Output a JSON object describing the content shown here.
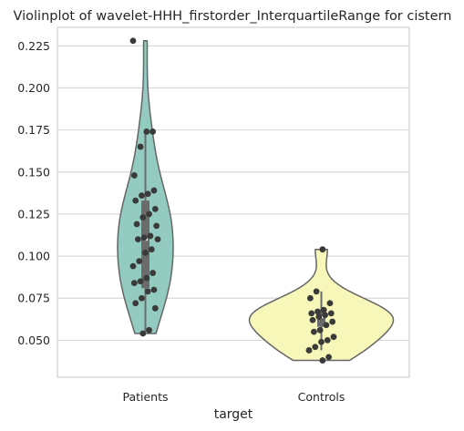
{
  "chart_data": {
    "type": "violin",
    "title": "Violinplot of wavelet-HHH_firstorder_InterquartileRange for cistern",
    "xlabel": "target",
    "ylabel": "",
    "categories": [
      "Patients",
      "Controls"
    ],
    "ylim": [
      0.028,
      0.236
    ],
    "yticks": [
      0.05,
      0.075,
      0.1,
      0.125,
      0.15,
      0.175,
      0.2,
      0.225
    ],
    "ytick_labels": [
      "0.050",
      "0.075",
      "0.100",
      "0.125",
      "0.150",
      "0.175",
      "0.200",
      "0.225"
    ],
    "grid": true,
    "colors": {
      "Patients": "#93cbc1",
      "Controls": "#f7f7b9"
    },
    "series": [
      {
        "name": "Patients",
        "box": {
          "q1": 0.081,
          "median": 0.11,
          "q3": 0.133,
          "whisker_low": 0.055,
          "whisker_high": 0.174
        },
        "points": [
          0.228,
          0.174,
          0.174,
          0.165,
          0.148,
          0.139,
          0.137,
          0.136,
          0.133,
          0.128,
          0.125,
          0.123,
          0.119,
          0.118,
          0.112,
          0.111,
          0.11,
          0.11,
          0.104,
          0.102,
          0.097,
          0.094,
          0.09,
          0.087,
          0.085,
          0.084,
          0.08,
          0.079,
          0.075,
          0.072,
          0.069,
          0.056,
          0.054
        ]
      },
      {
        "name": "Controls",
        "box": {
          "q1": 0.058,
          "median": 0.064,
          "q3": 0.068,
          "whisker_low": 0.044,
          "whisker_high": 0.079
        },
        "points": [
          0.104,
          0.079,
          0.075,
          0.072,
          0.068,
          0.067,
          0.066,
          0.066,
          0.065,
          0.064,
          0.062,
          0.061,
          0.059,
          0.056,
          0.055,
          0.052,
          0.05,
          0.049,
          0.046,
          0.044,
          0.04,
          0.038
        ]
      }
    ]
  }
}
